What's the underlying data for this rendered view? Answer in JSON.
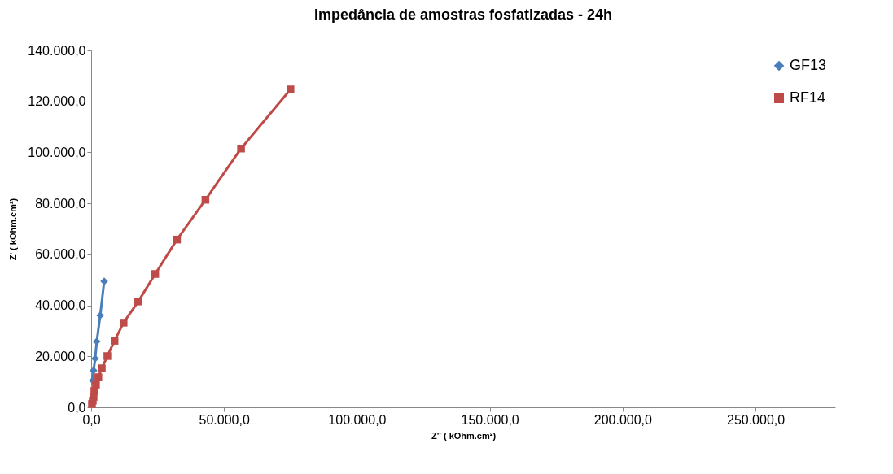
{
  "chart_data": {
    "type": "line",
    "title": "Impedância de amostras fosfatizadas - 24h",
    "xlabel": "Z'' ( kOhm.cm²)",
    "ylabel": "Z' ( kOhm.cm²)",
    "xlim": [
      0,
      280000
    ],
    "ylim": [
      0,
      140000
    ],
    "xticks": [
      {
        "value": 0,
        "label": "0,0"
      },
      {
        "value": 50000,
        "label": "50.000,0"
      },
      {
        "value": 100000,
        "label": "100.000,0"
      },
      {
        "value": 150000,
        "label": "150.000,0"
      },
      {
        "value": 200000,
        "label": "200.000,0"
      },
      {
        "value": 250000,
        "label": "250.000,0"
      }
    ],
    "yticks": [
      {
        "value": 0,
        "label": "0,0"
      },
      {
        "value": 20000,
        "label": "20.000,0"
      },
      {
        "value": 40000,
        "label": "40.000,0"
      },
      {
        "value": 60000,
        "label": "60.000,0"
      },
      {
        "value": 80000,
        "label": "80.000,0"
      },
      {
        "value": 100000,
        "label": "100.000,0"
      },
      {
        "value": 120000,
        "label": "120.000,0"
      },
      {
        "value": 140000,
        "label": "140.000,0"
      }
    ],
    "legend": "top right",
    "series": [
      {
        "name": "GF13",
        "color": "#4a7ebb",
        "marker": "diamond",
        "x": [
          600,
          900,
          1500,
          2100,
          3400,
          4900
        ],
        "values": [
          10500,
          14400,
          19100,
          25800,
          36000,
          49400
        ]
      },
      {
        "name": "RF14",
        "color": "#be4b48",
        "marker": "square",
        "x": [
          300,
          600,
          900,
          1200,
          1800,
          2700,
          4000,
          6100,
          8800,
          12200,
          17700,
          24100,
          32300,
          43000,
          56400,
          75000
        ],
        "values": [
          1300,
          2600,
          4100,
          6400,
          8900,
          11800,
          15300,
          20100,
          26100,
          33200,
          41500,
          52300,
          65800,
          81400,
          101500,
          124700
        ]
      }
    ]
  }
}
